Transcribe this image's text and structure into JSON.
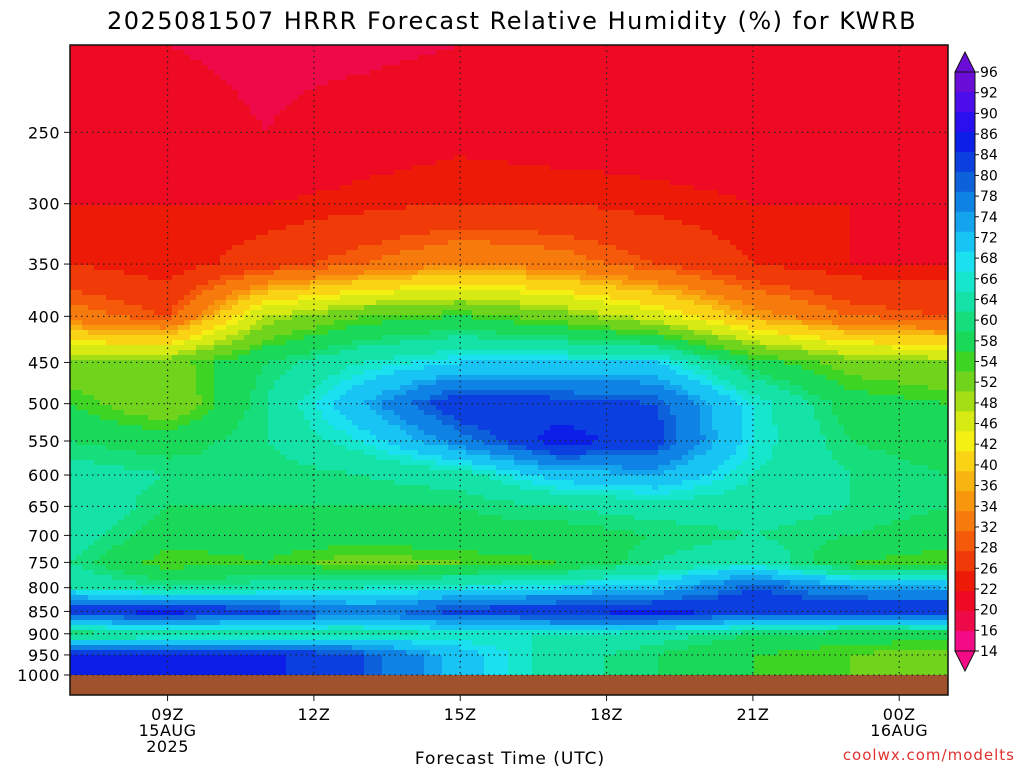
{
  "chart_data": {
    "type": "heatmap",
    "title": "2025081507 HRRR Forecast Relative Humidity (%) for KWRB",
    "xlabel": "Forecast Time (UTC)",
    "ylabel": "",
    "credit": "coolwx.com/modelts",
    "x_ticks": [
      {
        "hour": 9,
        "lines": [
          "09Z",
          "15AUG",
          "2025"
        ]
      },
      {
        "hour": 12,
        "lines": [
          "12Z"
        ]
      },
      {
        "hour": 15,
        "lines": [
          "15Z"
        ]
      },
      {
        "hour": 18,
        "lines": [
          "18Z"
        ]
      },
      {
        "hour": 21,
        "lines": [
          "21Z"
        ]
      },
      {
        "hour": 24,
        "lines": [
          "00Z",
          "16AUG"
        ]
      }
    ],
    "x_range_hours": [
      7.0,
      25.0
    ],
    "y_ticks": [
      250,
      300,
      350,
      400,
      450,
      500,
      550,
      600,
      650,
      700,
      750,
      800,
      850,
      900,
      950,
      1000
    ],
    "y_range_hPa": [
      200,
      1000
    ],
    "y_scale": "log-pressure (reversed)",
    "grid": "dotted at tick positions",
    "colorbar_labels": [
      96,
      92,
      90,
      86,
      84,
      80,
      78,
      74,
      72,
      68,
      66,
      64,
      60,
      58,
      54,
      52,
      48,
      46,
      42,
      40,
      36,
      34,
      32,
      28,
      26,
      22,
      20,
      16,
      14
    ],
    "colorbar_colors": [
      "#6a0dd6",
      "#4b0dea",
      "#2a10ee",
      "#0b1fe8",
      "#0b3fe0",
      "#0d62dc",
      "#0f82e6",
      "#14a4ee",
      "#18c4f4",
      "#1ae0f0",
      "#16e6cc",
      "#14e2a6",
      "#16de7c",
      "#1ad858",
      "#3ed424",
      "#70d41c",
      "#a6de16",
      "#d8ea14",
      "#f4f014",
      "#fad414",
      "#f8b410",
      "#f8960e",
      "#f67a0c",
      "#f45a0a",
      "#f03a08",
      "#ee1a08",
      "#ee0a22",
      "#ee0a48",
      "#f20a86"
    ],
    "profiles_by_hour": [
      {
        "hour": 7,
        "rh": [
          16,
          18,
          20,
          22,
          30,
          48,
          54,
          58,
          62,
          64,
          62,
          60,
          64,
          84,
          58,
          85
        ]
      },
      {
        "hour": 9,
        "rh": [
          16,
          18,
          20,
          20,
          26,
          50,
          48,
          56,
          60,
          58,
          56,
          52,
          60,
          86,
          60,
          86
        ]
      },
      {
        "hour": 11,
        "rh": [
          15,
          16,
          20,
          24,
          46,
          58,
          60,
          60,
          58,
          58,
          56,
          54,
          62,
          82,
          60,
          85
        ]
      },
      {
        "hour": 13,
        "rh": [
          15,
          18,
          21,
          28,
          52,
          64,
          72,
          66,
          60,
          58,
          56,
          50,
          64,
          76,
          62,
          80
        ]
      },
      {
        "hour": 15,
        "rh": [
          16,
          19,
          22,
          32,
          54,
          68,
          84,
          76,
          62,
          58,
          57,
          52,
          66,
          82,
          64,
          70
        ]
      },
      {
        "hour": 17,
        "rh": [
          16,
          18,
          22,
          30,
          50,
          68,
          82,
          86,
          70,
          60,
          56,
          54,
          68,
          84,
          64,
          62
        ]
      },
      {
        "hour": 19,
        "rh": [
          16,
          18,
          21,
          26,
          44,
          68,
          80,
          82,
          72,
          62,
          58,
          60,
          70,
          86,
          62,
          58
        ]
      },
      {
        "hour": 21,
        "rh": [
          16,
          18,
          20,
          22,
          34,
          56,
          66,
          66,
          64,
          62,
          60,
          64,
          80,
          84,
          58,
          54
        ]
      },
      {
        "hour": 23,
        "rh": [
          16,
          18,
          20,
          20,
          28,
          50,
          56,
          58,
          60,
          60,
          58,
          54,
          74,
          84,
          56,
          52
        ]
      },
      {
        "hour": 25,
        "rh": [
          16,
          19,
          20,
          20,
          26,
          48,
          54,
          56,
          58,
          58,
          56,
          52,
          72,
          85,
          56,
          50
        ]
      }
    ],
    "profile_levels_hPa": [
      200,
      250,
      300,
      350,
      400,
      450,
      500,
      550,
      600,
      650,
      700,
      750,
      800,
      850,
      900,
      950
    ]
  }
}
